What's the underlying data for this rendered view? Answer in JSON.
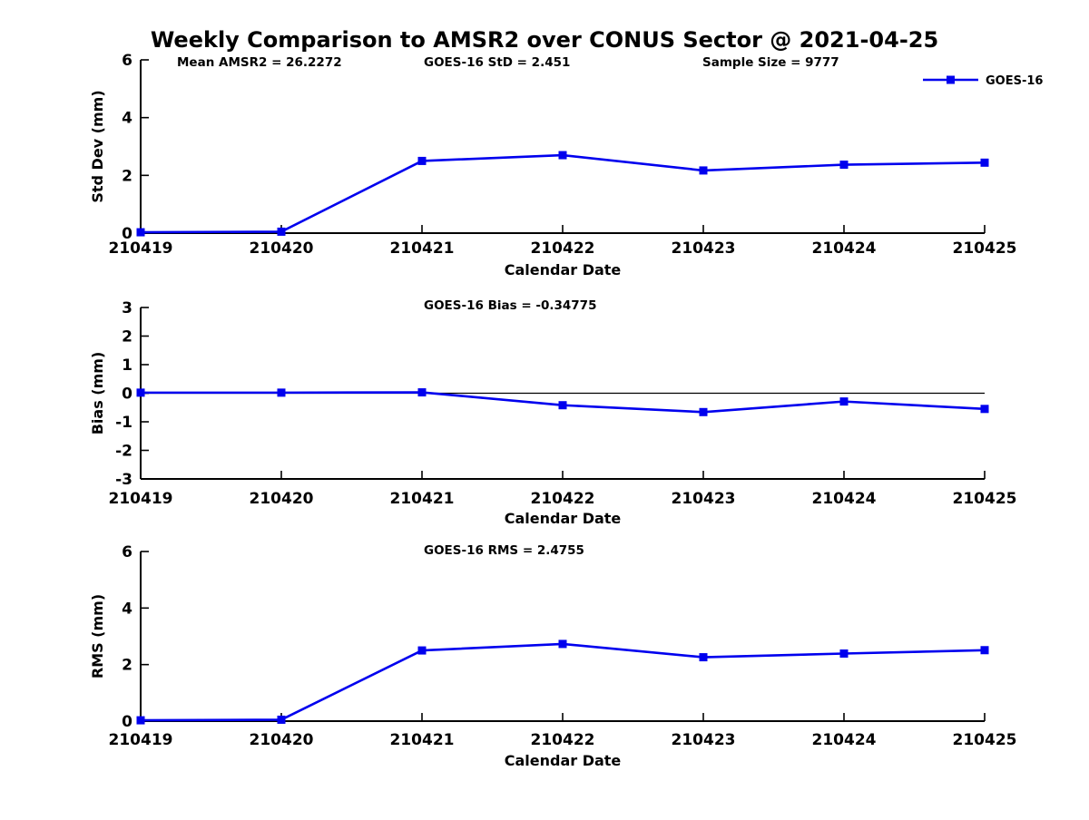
{
  "title": "Weekly Comparison to AMSR2 over CONUS Sector @ 2021-04-25",
  "legend": {
    "label": "GOES-16"
  },
  "colors": {
    "series": "#0000EE",
    "axis": "#000000",
    "background": "#FFFFFF"
  },
  "chart_data": [
    {
      "name": "stddev",
      "type": "line",
      "annotations": [
        "Mean AMSR2 = 26.2272",
        "GOES-16 StD = 2.451",
        "Sample Size = 9777"
      ],
      "categories": [
        "210419",
        "210420",
        "210421",
        "210422",
        "210423",
        "210424",
        "210425"
      ],
      "series": [
        {
          "name": "GOES-16",
          "values": [
            0.03,
            0.05,
            2.5,
            2.7,
            2.17,
            2.37,
            2.44
          ]
        }
      ],
      "xlabel": "Calendar Date",
      "ylabel": "Std Dev (mm)",
      "ylim": [
        0,
        6
      ],
      "yticks": [
        0,
        2,
        4,
        6
      ],
      "zero_line": false,
      "show_legend": true,
      "legend_position": "top-right-inside",
      "grid": false
    },
    {
      "name": "bias",
      "type": "line",
      "annotations": [
        "GOES-16 Bias  = -0.34775"
      ],
      "categories": [
        "210419",
        "210420",
        "210421",
        "210422",
        "210423",
        "210424",
        "210425"
      ],
      "series": [
        {
          "name": "GOES-16",
          "values": [
            0.02,
            0.02,
            0.03,
            -0.42,
            -0.66,
            -0.29,
            -0.55
          ]
        }
      ],
      "xlabel": "Calendar Date",
      "ylabel": "Bias (mm)",
      "ylim": [
        -3,
        3
      ],
      "yticks": [
        -3,
        -2,
        -1,
        0,
        1,
        2,
        3
      ],
      "zero_line": true,
      "show_legend": false,
      "grid": false
    },
    {
      "name": "rms",
      "type": "line",
      "annotations": [
        "GOES-16 RMS = 2.4755"
      ],
      "categories": [
        "210419",
        "210420",
        "210421",
        "210422",
        "210423",
        "210424",
        "210425"
      ],
      "series": [
        {
          "name": "GOES-16",
          "values": [
            0.03,
            0.05,
            2.5,
            2.73,
            2.26,
            2.39,
            2.51
          ]
        }
      ],
      "xlabel": "Calendar Date",
      "ylabel": "RMS (mm)",
      "ylim": [
        0,
        6
      ],
      "yticks": [
        0,
        2,
        4,
        6
      ],
      "zero_line": false,
      "show_legend": false,
      "grid": false
    }
  ]
}
